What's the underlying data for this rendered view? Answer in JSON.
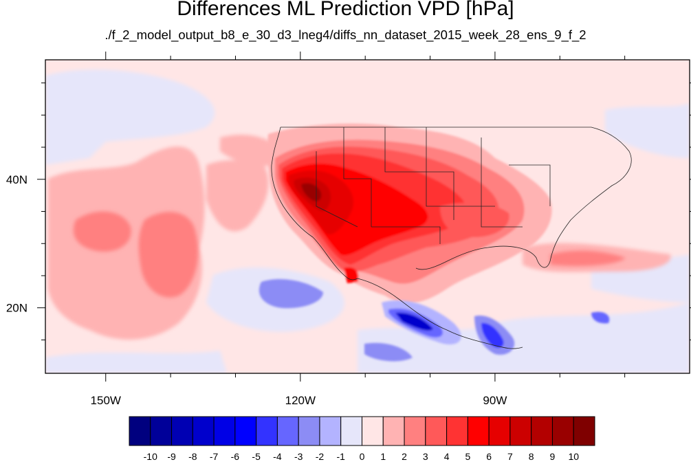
{
  "title": "Differences ML Prediction VPD [hPa]",
  "subtitle": "./f_2_model_output_b8_e_30_d3_lneg4/diffs_nn_dataset_2015_week_28_ens_9_f_2",
  "map": {
    "lon_ticks": [
      {
        "lon": -150,
        "label": "150W"
      },
      {
        "lon": -120,
        "label": "120W"
      },
      {
        "lon": -90,
        "label": "90W"
      }
    ],
    "lat_ticks": [
      {
        "lat": 40,
        "label": "40N"
      },
      {
        "lat": 20,
        "label": "20N"
      }
    ]
  },
  "colorbar": {
    "labels": [
      "-10",
      "-9",
      "-8",
      "-7",
      "-6",
      "-5",
      "-4",
      "-3",
      "-2",
      "-1",
      "0",
      "1",
      "2",
      "3",
      "4",
      "5",
      "6",
      "7",
      "8",
      "9",
      "10"
    ],
    "colors": [
      "#00007f",
      "#000099",
      "#0000b3",
      "#0000cc",
      "#0000e6",
      "#0000ff",
      "#3333ff",
      "#6666ff",
      "#8c8cf5",
      "#b3b3ff",
      "#e6e6fa",
      "#ffe6e6",
      "#ffb3b3",
      "#ff8080",
      "#ff5959",
      "#ff3333",
      "#ff0000",
      "#e60000",
      "#cc0000",
      "#b30000",
      "#990000",
      "#7f0000"
    ]
  }
}
